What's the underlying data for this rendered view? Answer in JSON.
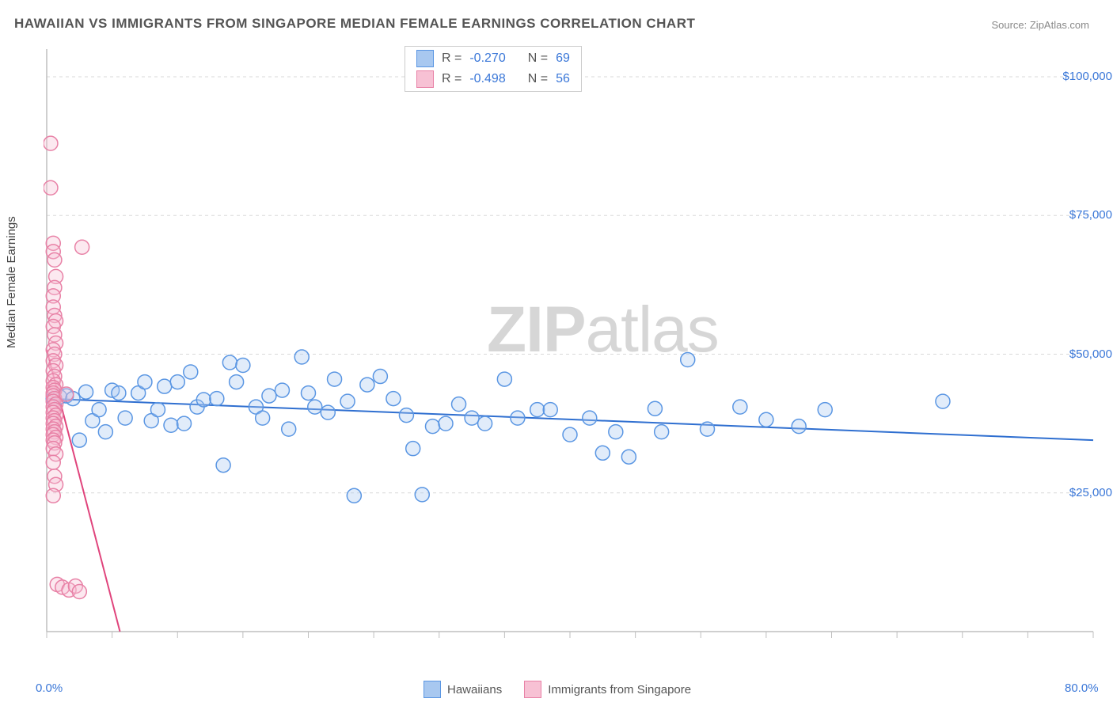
{
  "title": "HAWAIIAN VS IMMIGRANTS FROM SINGAPORE MEDIAN FEMALE EARNINGS CORRELATION CHART",
  "source_label": "Source: ",
  "source_value": "ZipAtlas.com",
  "ylabel": "Median Female Earnings",
  "watermark_1": "ZIP",
  "watermark_2": "atlas",
  "chart": {
    "type": "scatter",
    "background_color": "#ffffff",
    "grid_color": "#d9d9d9",
    "axis_color": "#bfbfbf",
    "label_color": "#3a77d8",
    "text_color": "#555555",
    "marker_radius": 9,
    "marker_stroke_width": 1.5,
    "marker_fill_opacity": 0.35,
    "xlim": [
      0,
      80
    ],
    "ylim": [
      0,
      105000
    ],
    "x_ticks_minor_step": 5,
    "y_gridlines": [
      25000,
      50000,
      75000,
      100000
    ],
    "x_tick_labels": [
      {
        "x": 0,
        "label": "0.0%"
      },
      {
        "x": 80,
        "label": "80.0%"
      }
    ],
    "y_tick_labels": [
      {
        "y": 25000,
        "label": "$25,000"
      },
      {
        "y": 50000,
        "label": "$50,000"
      },
      {
        "y": 75000,
        "label": "$75,000"
      },
      {
        "y": 100000,
        "label": "$100,000"
      }
    ],
    "series": [
      {
        "name": "Hawaiians",
        "color_stroke": "#5a96e3",
        "color_fill": "#a8c8f0",
        "r_label": "R = ",
        "r_value": "-0.270",
        "n_label": "N = ",
        "n_value": "69",
        "trend": {
          "x1": 0,
          "y1": 42000,
          "x2": 80,
          "y2": 34500,
          "color": "#2f6fd0",
          "width": 2
        },
        "points": [
          [
            0.5,
            42000
          ],
          [
            1.0,
            42300
          ],
          [
            1.5,
            42500
          ],
          [
            2.0,
            42000
          ],
          [
            2.5,
            34500
          ],
          [
            3.0,
            43200
          ],
          [
            3.5,
            38000
          ],
          [
            4.0,
            40000
          ],
          [
            4.5,
            36000
          ],
          [
            5.0,
            43500
          ],
          [
            5.5,
            43000
          ],
          [
            6.0,
            38500
          ],
          [
            7.0,
            43000
          ],
          [
            7.5,
            45000
          ],
          [
            8.0,
            38000
          ],
          [
            8.5,
            40000
          ],
          [
            9.0,
            44200
          ],
          [
            9.5,
            37200
          ],
          [
            10.0,
            45000
          ],
          [
            10.5,
            37500
          ],
          [
            11.0,
            46800
          ],
          [
            11.5,
            40500
          ],
          [
            12.0,
            41800
          ],
          [
            13.0,
            42000
          ],
          [
            13.5,
            30000
          ],
          [
            14.0,
            48500
          ],
          [
            14.5,
            45000
          ],
          [
            15.0,
            48000
          ],
          [
            16.0,
            40500
          ],
          [
            16.5,
            38500
          ],
          [
            17.0,
            42500
          ],
          [
            18.0,
            43500
          ],
          [
            18.5,
            36500
          ],
          [
            19.5,
            49500
          ],
          [
            20.0,
            43000
          ],
          [
            20.5,
            40500
          ],
          [
            21.5,
            39500
          ],
          [
            22.0,
            45500
          ],
          [
            23.0,
            41500
          ],
          [
            23.5,
            24500
          ],
          [
            24.5,
            44500
          ],
          [
            25.5,
            46000
          ],
          [
            26.5,
            42000
          ],
          [
            27.5,
            39000
          ],
          [
            28.0,
            33000
          ],
          [
            28.7,
            24700
          ],
          [
            29.5,
            37000
          ],
          [
            30.5,
            37500
          ],
          [
            31.5,
            41000
          ],
          [
            32.5,
            38500
          ],
          [
            33.5,
            37500
          ],
          [
            35.0,
            45500
          ],
          [
            36.0,
            38500
          ],
          [
            37.5,
            40000
          ],
          [
            38.5,
            40000
          ],
          [
            40.0,
            35500
          ],
          [
            41.5,
            38500
          ],
          [
            42.5,
            32200
          ],
          [
            43.5,
            36000
          ],
          [
            44.5,
            31500
          ],
          [
            46.5,
            40200
          ],
          [
            47.0,
            36000
          ],
          [
            49.0,
            49000
          ],
          [
            50.5,
            36500
          ],
          [
            53.0,
            40500
          ],
          [
            55.0,
            38200
          ],
          [
            57.5,
            37000
          ],
          [
            59.5,
            40000
          ],
          [
            68.5,
            41500
          ]
        ]
      },
      {
        "name": "Immigrants from Singapore",
        "color_stroke": "#e881a6",
        "color_fill": "#f7c1d4",
        "r_label": "R = ",
        "r_value": "-0.498",
        "n_label": "N = ",
        "n_value": "56",
        "trend": {
          "x1": 0,
          "y1": 50800,
          "x2": 5.6,
          "y2": 0,
          "color": "#e0447c",
          "width": 2
        },
        "points": [
          [
            0.3,
            88000
          ],
          [
            0.3,
            80000
          ],
          [
            0.5,
            70000
          ],
          [
            0.5,
            68500
          ],
          [
            0.6,
            67000
          ],
          [
            0.7,
            64000
          ],
          [
            0.6,
            62000
          ],
          [
            0.5,
            60500
          ],
          [
            0.5,
            58500
          ],
          [
            0.6,
            57000
          ],
          [
            0.7,
            56000
          ],
          [
            0.5,
            55000
          ],
          [
            0.6,
            53500
          ],
          [
            0.7,
            52000
          ],
          [
            0.5,
            50800
          ],
          [
            0.6,
            50000
          ],
          [
            0.5,
            48800
          ],
          [
            0.7,
            48000
          ],
          [
            0.5,
            47000
          ],
          [
            0.6,
            46000
          ],
          [
            0.5,
            45200
          ],
          [
            0.7,
            44500
          ],
          [
            0.5,
            44000
          ],
          [
            0.6,
            43500
          ],
          [
            0.5,
            43000
          ],
          [
            0.5,
            42500
          ],
          [
            0.6,
            42000
          ],
          [
            0.5,
            41500
          ],
          [
            0.7,
            41000
          ],
          [
            0.5,
            40500
          ],
          [
            0.6,
            40000
          ],
          [
            0.5,
            39500
          ],
          [
            0.7,
            39000
          ],
          [
            0.5,
            38500
          ],
          [
            0.6,
            38000
          ],
          [
            0.5,
            37500
          ],
          [
            0.7,
            37000
          ],
          [
            0.5,
            36500
          ],
          [
            0.6,
            36000
          ],
          [
            0.5,
            35500
          ],
          [
            0.7,
            35000
          ],
          [
            0.5,
            34500
          ],
          [
            0.6,
            34000
          ],
          [
            0.5,
            33000
          ],
          [
            0.7,
            32000
          ],
          [
            0.5,
            30500
          ],
          [
            0.6,
            28000
          ],
          [
            0.7,
            26500
          ],
          [
            0.5,
            24500
          ],
          [
            0.8,
            8500
          ],
          [
            1.2,
            8000
          ],
          [
            1.7,
            7500
          ],
          [
            2.2,
            8200
          ],
          [
            2.5,
            7200
          ],
          [
            2.7,
            69300
          ],
          [
            1.5,
            42800
          ]
        ]
      }
    ]
  },
  "bottom_legend": [
    {
      "label": "Hawaiians",
      "stroke": "#5a96e3",
      "fill": "#a8c8f0"
    },
    {
      "label": "Immigrants from Singapore",
      "stroke": "#e881a6",
      "fill": "#f7c1d4"
    }
  ]
}
